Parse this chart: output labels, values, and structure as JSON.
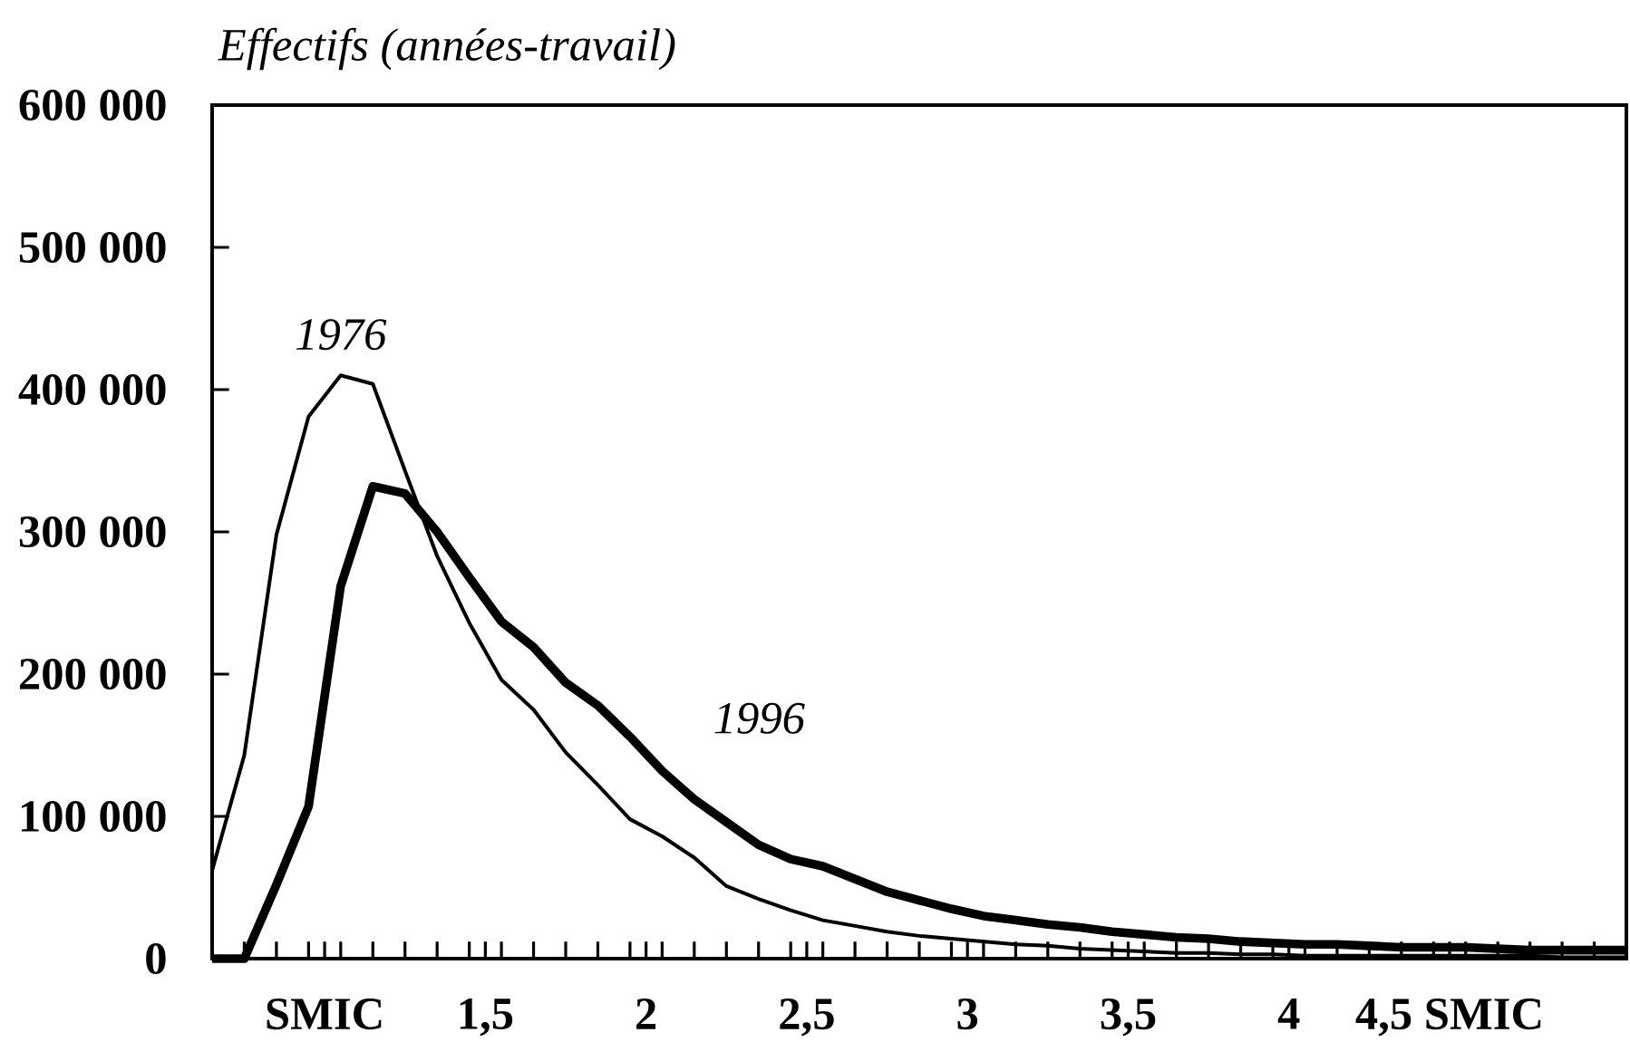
{
  "chart_data": {
    "type": "line",
    "ylabel": "Effectifs (années-travail)",
    "x": [
      0.65,
      0.75,
      0.85,
      0.95,
      1.05,
      1.15,
      1.25,
      1.35,
      1.45,
      1.55,
      1.65,
      1.75,
      1.85,
      1.95,
      2.05,
      2.15,
      2.25,
      2.35,
      2.45,
      2.55,
      2.65,
      2.75,
      2.85,
      2.95,
      3.05,
      3.15,
      3.25,
      3.35,
      3.45,
      3.55,
      3.65,
      3.75,
      3.85,
      3.95,
      4.05,
      4.15,
      4.25,
      4.35,
      4.45,
      4.55,
      4.65,
      4.75,
      4.85,
      4.95,
      5.05
    ],
    "series": [
      {
        "name": "1976",
        "color": "#000000",
        "values": [
          62000,
          143000,
          298000,
          381000,
          410000,
          404000,
          343000,
          283000,
          236000,
          196000,
          175000,
          145000,
          122000,
          98000,
          86000,
          71000,
          51000,
          42000,
          34000,
          27000,
          23000,
          19000,
          16000,
          14000,
          12000,
          10000,
          9000,
          7000,
          6000,
          5000,
          4000,
          4000,
          3000,
          3000,
          2000,
          2000,
          2000,
          2000,
          2000,
          2000,
          2000,
          2000,
          1000,
          1000,
          1000
        ]
      },
      {
        "name": "1996",
        "color": "#000000",
        "values": [
          0,
          0,
          52000,
          107000,
          262000,
          332000,
          327000,
          300000,
          268000,
          237000,
          219000,
          194000,
          178000,
          156000,
          132000,
          112000,
          96000,
          80000,
          70000,
          65000,
          56000,
          47000,
          41000,
          35000,
          30000,
          27000,
          24000,
          22000,
          19000,
          17000,
          15000,
          14000,
          12000,
          11000,
          10000,
          10000,
          9000,
          8000,
          8000,
          8000,
          7000,
          6000,
          6000,
          6000,
          6000
        ]
      }
    ],
    "xlim": [
      0.65,
      5.05
    ],
    "ylim": [
      0,
      600000
    ],
    "xticks": [
      {
        "value": 1,
        "label": "SMIC"
      },
      {
        "value": 1.5,
        "label": "1,5"
      },
      {
        "value": 2,
        "label": "2"
      },
      {
        "value": 2.5,
        "label": "2,5"
      },
      {
        "value": 3,
        "label": "3"
      },
      {
        "value": 3.5,
        "label": "3,5"
      },
      {
        "value": 4,
        "label": "4"
      },
      {
        "value": 4.5,
        "label": "4,5 SMIC"
      },
      {
        "value": 0.75,
        "label": null
      },
      {
        "value": 0.85,
        "label": null
      },
      {
        "value": 0.95,
        "label": null
      },
      {
        "value": 1.05,
        "label": null
      },
      {
        "value": 1.15,
        "label": null
      },
      {
        "value": 1.25,
        "label": null
      },
      {
        "value": 1.35,
        "label": null
      },
      {
        "value": 1.45,
        "label": null
      },
      {
        "value": 1.55,
        "label": null
      },
      {
        "value": 1.65,
        "label": null
      },
      {
        "value": 1.75,
        "label": null
      },
      {
        "value": 1.85,
        "label": null
      },
      {
        "value": 1.95,
        "label": null
      },
      {
        "value": 2.05,
        "label": null
      },
      {
        "value": 2.15,
        "label": null
      },
      {
        "value": 2.25,
        "label": null
      },
      {
        "value": 2.35,
        "label": null
      },
      {
        "value": 2.45,
        "label": null
      },
      {
        "value": 2.55,
        "label": null
      },
      {
        "value": 2.65,
        "label": null
      },
      {
        "value": 2.75,
        "label": null
      },
      {
        "value": 2.85,
        "label": null
      },
      {
        "value": 2.95,
        "label": null
      },
      {
        "value": 3.05,
        "label": null
      },
      {
        "value": 3.15,
        "label": null
      },
      {
        "value": 3.25,
        "label": null
      },
      {
        "value": 3.35,
        "label": null
      },
      {
        "value": 3.45,
        "label": null
      },
      {
        "value": 3.55,
        "label": null
      },
      {
        "value": 3.65,
        "label": null
      },
      {
        "value": 3.75,
        "label": null
      },
      {
        "value": 3.85,
        "label": null
      },
      {
        "value": 3.95,
        "label": null
      },
      {
        "value": 4.05,
        "label": null
      },
      {
        "value": 4.15,
        "label": null
      },
      {
        "value": 4.25,
        "label": null
      },
      {
        "value": 4.35,
        "label": null
      },
      {
        "value": 4.45,
        "label": null
      },
      {
        "value": 4.55,
        "label": null
      },
      {
        "value": 4.65,
        "label": null
      },
      {
        "value": 4.75,
        "label": null
      },
      {
        "value": 4.85,
        "label": null
      },
      {
        "value": 4.95,
        "label": null
      }
    ],
    "yticks": [
      {
        "value": 0,
        "label": "0"
      },
      {
        "value": 100000,
        "label": "100 000"
      },
      {
        "value": 200000,
        "label": "200 000"
      },
      {
        "value": 300000,
        "label": "300 000"
      },
      {
        "value": 400000,
        "label": "400 000"
      },
      {
        "value": 500000,
        "label": "500 000"
      },
      {
        "value": 600000,
        "label": "600 000"
      }
    ],
    "grid": false
  }
}
